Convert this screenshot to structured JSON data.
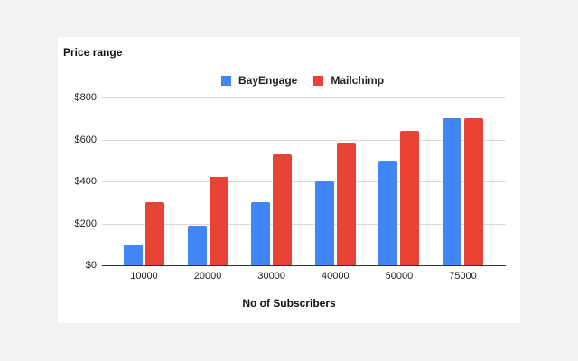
{
  "chart_data": {
    "type": "bar",
    "title": "Price range",
    "xlabel": "No of Subscribers",
    "ylabel": "",
    "categories": [
      "10000",
      "20000",
      "30000",
      "40000",
      "50000",
      "75000"
    ],
    "series": [
      {
        "name": "BayEngage",
        "color": "#4285f4",
        "values": [
          100,
          190,
          300,
          400,
          500,
          700
        ]
      },
      {
        "name": "Mailchimp",
        "color": "#ea4335",
        "values": [
          300,
          420,
          530,
          580,
          640,
          700
        ]
      }
    ],
    "ylim": [
      0,
      800
    ],
    "yticks": [
      0,
      200,
      400,
      600,
      800
    ],
    "ytick_labels": [
      "$0",
      "$200",
      "$400",
      "$600",
      "$800"
    ],
    "grid": true,
    "legend_position": "top"
  },
  "labels": {
    "title": "Price range",
    "xlabel": "No of Subscribers",
    "legend": [
      "BayEngage",
      "Mailchimp"
    ]
  }
}
